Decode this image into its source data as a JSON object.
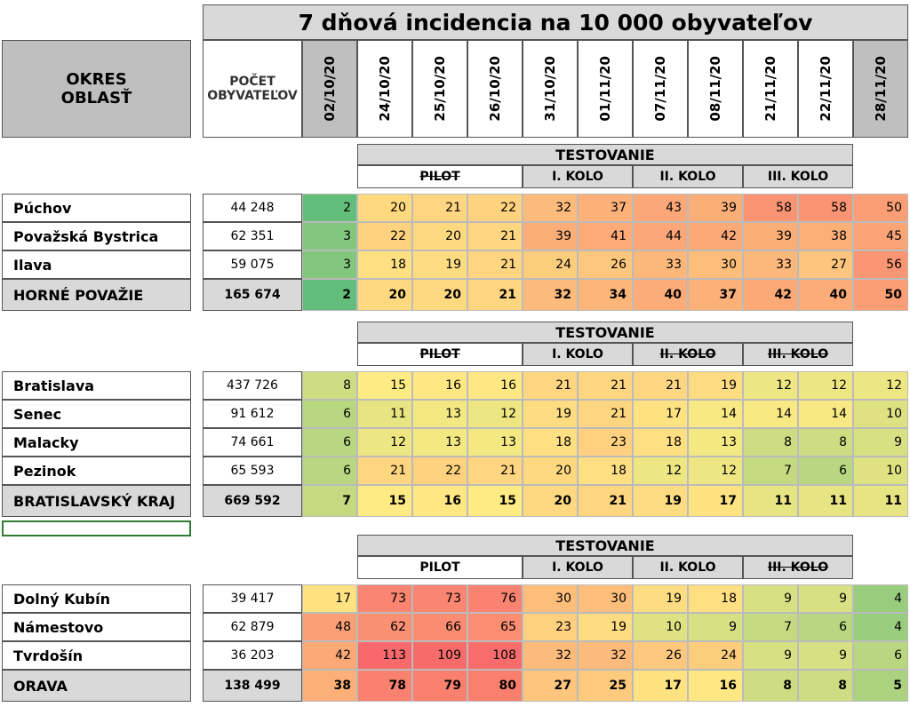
{
  "header": {
    "title": "7 dňová incidencia na 10 000 obyvateľov",
    "region_label": [
      "OKRES",
      "OBLASŤ"
    ],
    "population_label": [
      "POČET",
      "OBYVATEĽOV"
    ],
    "dates": [
      "02/10/20",
      "24/10/20",
      "25/10/20",
      "26/10/20",
      "31/10/20",
      "01/11/20",
      "07/11/20",
      "08/11/20",
      "21/11/20",
      "22/11/20",
      "28/11/20"
    ]
  },
  "sections": [
    {
      "testing": {
        "title": "TESTOVANIE",
        "phases": [
          {
            "label": "PILOT",
            "struck": true
          },
          {
            "label": "I. KOLO",
            "struck": false
          },
          {
            "label": "II. KOLO",
            "struck": false
          },
          {
            "label": "III. KOLO",
            "struck": false
          }
        ]
      },
      "rows": [
        {
          "name": "Púchov",
          "population": "44 248",
          "values": [
            2,
            20,
            21,
            22,
            32,
            37,
            43,
            39,
            58,
            58,
            50
          ],
          "total": false
        },
        {
          "name": "Považská Bystrica",
          "population": "62 351",
          "values": [
            3,
            22,
            20,
            21,
            39,
            41,
            44,
            42,
            39,
            38,
            45
          ],
          "total": false
        },
        {
          "name": "Ilava",
          "population": "59 075",
          "values": [
            3,
            18,
            19,
            21,
            24,
            26,
            33,
            30,
            33,
            27,
            56
          ],
          "total": false
        },
        {
          "name": "HORNÉ POVAŽIE",
          "population": "165 674",
          "values": [
            2,
            20,
            20,
            21,
            32,
            34,
            40,
            37,
            42,
            40,
            50
          ],
          "total": true
        }
      ]
    },
    {
      "testing": {
        "title": "TESTOVANIE",
        "phases": [
          {
            "label": "PILOT",
            "struck": true
          },
          {
            "label": "I. KOLO",
            "struck": false
          },
          {
            "label": "II. KOLO",
            "struck": true
          },
          {
            "label": "III. KOLO",
            "struck": true
          }
        ]
      },
      "rows": [
        {
          "name": "Bratislava",
          "population": "437 726",
          "values": [
            8,
            15,
            16,
            16,
            21,
            21,
            21,
            19,
            12,
            12,
            12
          ],
          "total": false
        },
        {
          "name": "Senec",
          "population": "91 612",
          "values": [
            6,
            11,
            13,
            12,
            19,
            21,
            17,
            14,
            14,
            14,
            10
          ],
          "total": false
        },
        {
          "name": "Malacky",
          "population": "74 661",
          "values": [
            6,
            12,
            13,
            13,
            18,
            23,
            18,
            13,
            8,
            8,
            9
          ],
          "total": false
        },
        {
          "name": "Pezinok",
          "population": "65 593",
          "values": [
            6,
            21,
            22,
            21,
            20,
            18,
            12,
            12,
            7,
            6,
            10
          ],
          "total": false
        },
        {
          "name": "BRATISLAVSKÝ KRAJ",
          "population": "669 592",
          "values": [
            7,
            15,
            16,
            15,
            20,
            21,
            19,
            17,
            11,
            11,
            11
          ],
          "total": true
        }
      ]
    },
    {
      "testing": {
        "title": "TESTOVANIE",
        "phases": [
          {
            "label": "PILOT",
            "struck": false
          },
          {
            "label": "I. KOLO",
            "struck": false
          },
          {
            "label": "II. KOLO",
            "struck": false
          },
          {
            "label": "III. KOLO",
            "struck": true
          }
        ]
      },
      "rows": [
        {
          "name": "Dolný Kubín",
          "population": "39 417",
          "values": [
            17,
            73,
            73,
            76,
            30,
            30,
            19,
            18,
            9,
            9,
            4
          ],
          "total": false
        },
        {
          "name": "Námestovo",
          "population": "62 879",
          "values": [
            48,
            62,
            66,
            65,
            23,
            19,
            10,
            9,
            7,
            6,
            4
          ],
          "total": false
        },
        {
          "name": "Tvrdošín",
          "population": "36 203",
          "values": [
            42,
            113,
            109,
            108,
            32,
            32,
            26,
            24,
            9,
            9,
            6
          ],
          "total": false
        },
        {
          "name": "ORAVA",
          "population": "138 499",
          "values": [
            38,
            78,
            79,
            80,
            27,
            25,
            17,
            16,
            8,
            8,
            5
          ],
          "total": true
        }
      ]
    }
  ]
}
